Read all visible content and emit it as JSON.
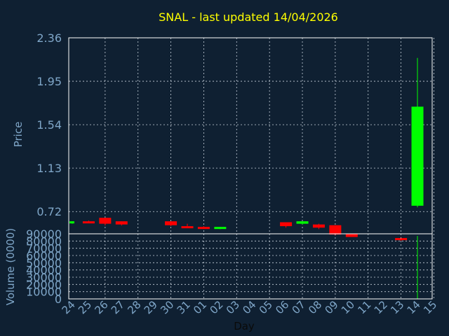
{
  "chart_data": {
    "type": "candlestick",
    "title": "SNAL - last updated 14/04/2026",
    "colors": {
      "background": "#0f2032",
      "title": "#ffff00",
      "axis_text": "#7fa6c8",
      "grid": "#c8d2dc",
      "up": "#00ff00",
      "down": "#ff0000"
    },
    "xlabel": "Day",
    "x_ticks": [
      "24",
      "25",
      "26",
      "27",
      "28",
      "29",
      "30",
      "31",
      "01",
      "02",
      "03",
      "04",
      "05",
      "06",
      "07",
      "08",
      "09",
      "10",
      "11",
      "12",
      "13",
      "14",
      "15"
    ],
    "price": {
      "ylabel": "Price",
      "ylim": [
        0.51,
        2.36
      ],
      "y_ticks": [
        "2.36",
        "1.95",
        "1.54",
        "1.13",
        "0.72"
      ],
      "candles": [
        {
          "x": "24",
          "open": 0.613,
          "high": 0.628,
          "low": 0.605,
          "close": 0.628,
          "dir": "up"
        },
        {
          "x": "25",
          "open": 0.628,
          "high": 0.635,
          "low": 0.612,
          "close": 0.617,
          "dir": "down"
        },
        {
          "x": "26",
          "open": 0.661,
          "high": 0.661,
          "low": 0.588,
          "close": 0.605,
          "dir": "down"
        },
        {
          "x": "27",
          "open": 0.628,
          "high": 0.628,
          "low": 0.588,
          "close": 0.598,
          "dir": "down"
        },
        {
          "x": "30",
          "open": 0.628,
          "high": 0.628,
          "low": 0.583,
          "close": 0.591,
          "dir": "down"
        },
        {
          "x": "31",
          "open": 0.582,
          "high": 0.605,
          "low": 0.571,
          "close": 0.575,
          "dir": "down"
        },
        {
          "x": "01",
          "open": 0.575,
          "high": 0.582,
          "low": 0.554,
          "close": 0.564,
          "dir": "down"
        },
        {
          "x": "02",
          "open": 0.568,
          "high": 0.575,
          "low": 0.554,
          "close": 0.575,
          "dir": "up"
        },
        {
          "x": "06",
          "open": 0.619,
          "high": 0.619,
          "low": 0.568,
          "close": 0.582,
          "dir": "down"
        },
        {
          "x": "07",
          "open": 0.605,
          "high": 0.628,
          "low": 0.598,
          "close": 0.628,
          "dir": "up"
        },
        {
          "x": "08",
          "open": 0.598,
          "high": 0.605,
          "low": 0.554,
          "close": 0.568,
          "dir": "down"
        },
        {
          "x": "09",
          "open": 0.591,
          "high": 0.591,
          "low": 0.492,
          "close": 0.503,
          "dir": "down"
        },
        {
          "x": "10",
          "open": 0.51,
          "high": 0.51,
          "low": 0.48,
          "close": 0.48,
          "dir": "down"
        },
        {
          "x": "13",
          "open": 0.47,
          "high": 0.48,
          "low": 0.44,
          "close": 0.45,
          "dir": "down"
        },
        {
          "x": "14",
          "open": 0.775,
          "high": 2.17,
          "low": 0.76,
          "close": 1.71,
          "dir": "up"
        }
      ]
    },
    "volume": {
      "ylabel": "Volume (0000)",
      "ylim": [
        0,
        90000
      ],
      "y_ticks": [
        "90000",
        "80000",
        "70000",
        "60000",
        "50000",
        "40000",
        "30000",
        "20000",
        "10000",
        "0"
      ],
      "bars": [
        {
          "x": "14",
          "value": 87000
        }
      ]
    }
  }
}
